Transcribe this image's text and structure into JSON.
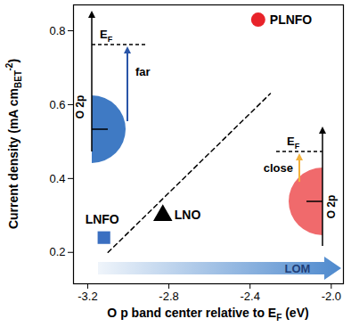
{
  "chart_data": {
    "type": "scatter",
    "xlabel": [
      {
        "text": "O p band center relative to E"
      },
      {
        "text": "F",
        "sub": true
      },
      {
        "text": " (eV)"
      }
    ],
    "ylabel": [
      {
        "text": "Current density (mA cm"
      },
      {
        "text": "BET",
        "sub": true
      },
      {
        "text": "-2",
        "sup": true
      },
      {
        "text": ")"
      }
    ],
    "xlim": [
      -3.27,
      -1.94
    ],
    "xticks": [
      -3.2,
      -2.8,
      -2.4,
      {
        "value": -2,
        "label": "-2.0"
      }
    ],
    "ylim": [
      0.115,
      0.87
    ],
    "yticks": [
      0.2,
      0.4,
      0.6,
      0.8
    ],
    "series": [
      {
        "name": "LNFO",
        "color": "#3a6fc1",
        "marker": "square",
        "x": [
          -3.12
        ],
        "y": [
          0.24
        ]
      },
      {
        "name": "LNO",
        "color": "#000000",
        "marker": "triangle",
        "x": [
          -2.83
        ],
        "y": [
          0.3
        ]
      },
      {
        "name": "PLNFO",
        "color": "#e8232a",
        "marker": "circle",
        "x": [
          -2.36
        ],
        "y": [
          0.83
        ]
      },
      {
        "type": "line",
        "line_style": "dashed",
        "color": "#000000",
        "x": [
          -3.1,
          -2.3
        ],
        "y": [
          0.2,
          0.63
        ]
      }
    ],
    "annotations": {
      "arrow_label": "LOM",
      "arrow_color": "#3a7cc8",
      "insets": [
        {
          "axis_label": "O 2p",
          "level": [
            {
              "text": "E"
            },
            {
              "text": "F",
              "sub": true
            }
          ],
          "gap_label": "far",
          "color": "#3f7ac4",
          "arrow_color": "#2a55a8"
        },
        {
          "axis_label": "O 2p",
          "level": [
            {
              "text": "E"
            },
            {
              "text": "F",
              "sub": true
            }
          ],
          "gap_label": "close",
          "color": "#f06a6c",
          "arrow_color": "#f2b13c"
        }
      ]
    }
  }
}
